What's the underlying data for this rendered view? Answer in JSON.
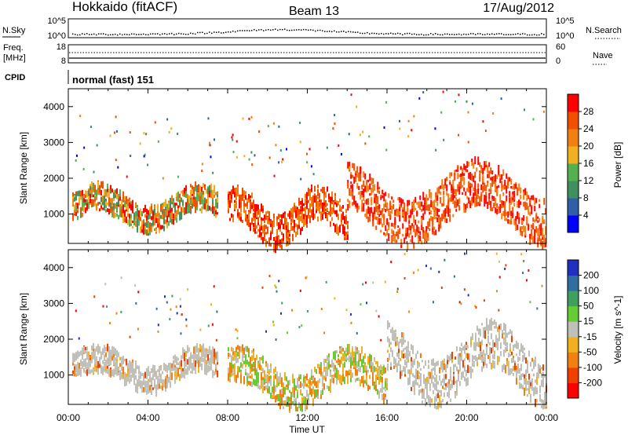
{
  "header": {
    "title": "Hokkaido (fitACF)",
    "beam": "Beam 13",
    "date": "17/Aug/2012"
  },
  "noise_panel": {
    "left_label": "N.Sky",
    "left_ticks": [
      "10^5",
      "10^0"
    ],
    "right_label": "N.Search",
    "right_ticks": [
      "10^5",
      "10^0"
    ]
  },
  "freq_panel": {
    "left_label_top": "Freq.",
    "left_label_bottom": "[MHz]",
    "left_ticks": [
      "18",
      "8"
    ],
    "right_label": "Nave",
    "right_ticks": [
      "60",
      "0"
    ]
  },
  "cpid": {
    "label": "CPID",
    "text": "normal (fast) 151"
  },
  "time_axis": {
    "label": "Time UT",
    "ticks": [
      "00:00",
      "04:00",
      "08:00",
      "12:00",
      "16:00",
      "20:00",
      "00:00"
    ]
  },
  "range_axis": {
    "label": "Slant Range [km]",
    "ticks": [
      "1000",
      "2000",
      "3000",
      "4000"
    ]
  },
  "chart_data": [
    {
      "type": "heatmap",
      "title": "",
      "xlabel": "Time UT",
      "ylabel": "Slant Range [km]",
      "x_range_hours": [
        0,
        24
      ],
      "ylim_km": [
        180,
        4500
      ],
      "colorbar": {
        "label": "Power [dB]",
        "ticks": [
          "4",
          "8",
          "12",
          "16",
          "20",
          "24",
          "28"
        ],
        "range": [
          0,
          30
        ],
        "colors": [
          "#0000ff",
          "#2f5fa6",
          "#3f8f5f",
          "#55b050",
          "#f0b020",
          "#f08010",
          "#f05000",
          "#ff0000"
        ]
      },
      "echo_regions": [
        {
          "t": [
            0.2,
            7.5
          ],
          "r": [
            700,
            2000
          ],
          "level": "mixed green/red"
        },
        {
          "t": [
            8.0,
            14.0
          ],
          "r": [
            300,
            2000
          ],
          "level": "strong red"
        },
        {
          "t": [
            14.0,
            24.0
          ],
          "r": [
            500,
            2800
          ],
          "level": "strong red"
        }
      ]
    },
    {
      "type": "heatmap",
      "title": "",
      "xlabel": "Time UT",
      "ylabel": "Slant Range [km]",
      "x_range_hours": [
        0,
        24
      ],
      "ylim_km": [
        180,
        4500
      ],
      "colorbar": {
        "label": "Velocity [m s^-1]",
        "ticks": [
          "200",
          "100",
          "50",
          "15",
          "-15",
          "-50",
          "-100",
          "-200"
        ],
        "colors": [
          "#2030c0",
          "#2f6fa0",
          "#3f9f5f",
          "#66cc33",
          "#c0c0b8",
          "#f0b020",
          "#f08010",
          "#f04000",
          "#ff0000"
        ]
      },
      "echo_regions": [
        {
          "t": [
            0.2,
            7.5
          ],
          "r": [
            700,
            2000
          ],
          "level": "ground scatter grey"
        },
        {
          "t": [
            8.0,
            16.0
          ],
          "r": [
            300,
            2000
          ],
          "level": "mixed orange/green"
        },
        {
          "t": [
            16.0,
            24.0
          ],
          "r": [
            500,
            2800
          ],
          "level": "ground scatter grey"
        }
      ]
    }
  ]
}
